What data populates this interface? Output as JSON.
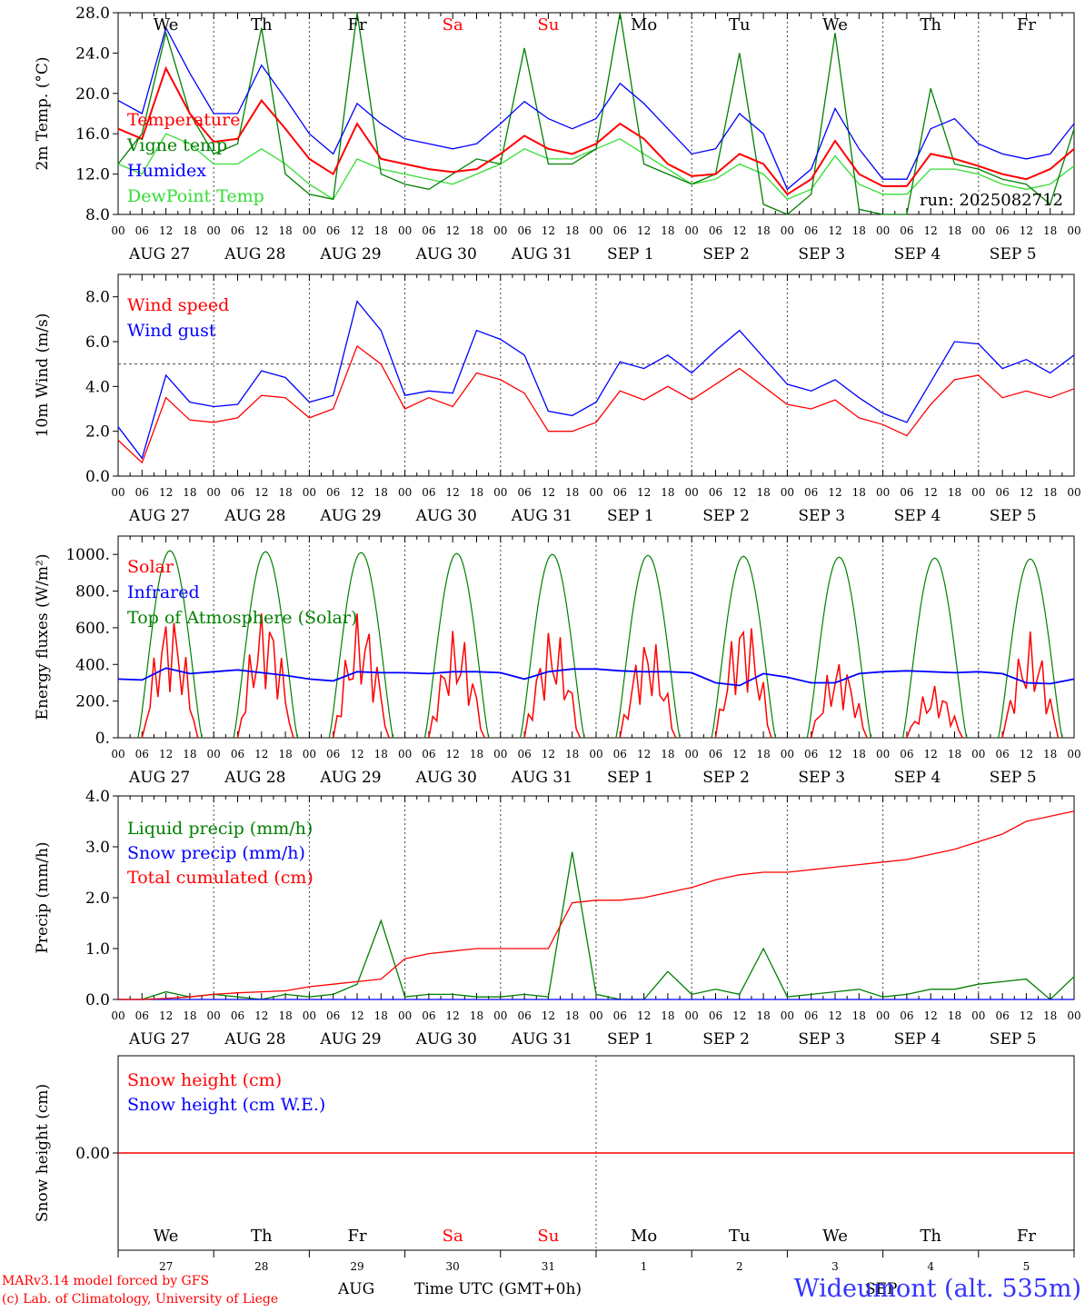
{
  "days": [
    {
      "name": "We",
      "color": "#000000",
      "date": "AUG 27",
      "num": "27"
    },
    {
      "name": "Th",
      "color": "#000000",
      "date": "AUG 28",
      "num": "28"
    },
    {
      "name": "Fr",
      "color": "#000000",
      "date": "AUG 29",
      "num": "29"
    },
    {
      "name": "Sa",
      "color": "#ff0000",
      "date": "AUG 30",
      "num": "30"
    },
    {
      "name": "Su",
      "color": "#ff0000",
      "date": "AUG 31",
      "num": "31"
    },
    {
      "name": "Mo",
      "color": "#000000",
      "date": "SEP  1",
      "num": "1"
    },
    {
      "name": "Tu",
      "color": "#000000",
      "date": "SEP  2",
      "num": "2"
    },
    {
      "name": "We",
      "color": "#000000",
      "date": "SEP  3",
      "num": "3"
    },
    {
      "name": "Th",
      "color": "#000000",
      "date": "SEP  4",
      "num": "4"
    },
    {
      "name": "Fr",
      "color": "#000000",
      "date": "SEP  5",
      "num": "5"
    }
  ],
  "hour_labels": [
    "00",
    "06",
    "12",
    "18"
  ],
  "run_label": "run: 2025082712",
  "footer": {
    "model": "MARv3.14 model forced by GFS",
    "lab": "(c) Lab. of Climatology, University of Liege",
    "month_aug": "AUG",
    "month_sep": "SEP",
    "axis_title": "Time UTC (GMT+0h)",
    "station": "Wideumont (alt. 535m)"
  },
  "colors": {
    "red": "#ff0000",
    "green": "#008000",
    "blue": "#0000ff",
    "lightgreen": "#33dd33"
  },
  "chart_data": [
    {
      "type": "line",
      "ylabel": "2m Temp. (°C)",
      "ylim": [
        8,
        28
      ],
      "yticks": [
        "8.0",
        "12.0",
        "16.0",
        "20.0",
        "24.0",
        "28.0"
      ],
      "ytick_values": [
        8,
        12,
        16,
        20,
        24,
        28
      ],
      "x_hours": [
        0,
        6,
        12,
        18,
        24,
        30,
        36,
        42,
        48,
        54,
        60,
        66,
        72,
        78,
        84,
        90,
        96,
        102,
        108,
        114,
        120,
        126,
        132,
        138,
        144,
        150,
        156,
        162,
        168,
        174,
        180,
        186,
        192,
        198,
        204,
        210,
        216,
        222,
        228,
        234,
        240
      ],
      "series": [
        {
          "name": "Temperature",
          "color": "#ff0000",
          "values": [
            16.5,
            15.5,
            22.5,
            18.0,
            15.2,
            15.5,
            19.3,
            16.5,
            13.5,
            12.0,
            17.0,
            13.5,
            13.0,
            12.5,
            12.2,
            12.5,
            14.0,
            15.8,
            14.5,
            14.0,
            15.0,
            17.0,
            15.5,
            13.0,
            11.8,
            12.0,
            14.0,
            13.0,
            10.0,
            11.5,
            15.3,
            12.0,
            10.8,
            10.8,
            14.0,
            13.5,
            12.8,
            12.0,
            11.5,
            12.5,
            14.5
          ]
        },
        {
          "name": "Vigne temp",
          "color": "#008000",
          "values": [
            13.0,
            16.0,
            26.0,
            18.0,
            14.0,
            15.0,
            26.5,
            12.0,
            10.0,
            9.5,
            28.0,
            12.0,
            11.0,
            10.5,
            12.0,
            13.5,
            13.0,
            24.5,
            13.0,
            13.0,
            14.5,
            28.0,
            13.0,
            12.0,
            11.0,
            12.0,
            24.0,
            9.0,
            7.5,
            10.0,
            26.0,
            8.5,
            7.5,
            7.0,
            20.5,
            13.0,
            12.5,
            11.5,
            11.0,
            9.0,
            16.5
          ]
        },
        {
          "name": "Humidex",
          "color": "#0000ff",
          "values": [
            19.3,
            18.0,
            26.5,
            22.0,
            18.0,
            18.0,
            22.8,
            19.5,
            16.0,
            14.0,
            19.0,
            17.0,
            15.5,
            15.0,
            14.5,
            15.0,
            17.0,
            19.2,
            17.5,
            16.5,
            17.5,
            21.0,
            19.0,
            16.5,
            14.0,
            14.5,
            18.0,
            16.0,
            10.5,
            12.5,
            18.5,
            14.5,
            11.5,
            11.5,
            16.5,
            17.5,
            15.0,
            14.0,
            13.5,
            14.0,
            17.0
          ]
        },
        {
          "name": "DewPoint Temp",
          "color": "#33dd33",
          "values": [
            13.0,
            12.0,
            16.0,
            15.0,
            13.0,
            13.0,
            14.5,
            13.0,
            11.0,
            9.5,
            13.5,
            12.5,
            12.0,
            11.5,
            11.0,
            12.0,
            13.0,
            14.5,
            13.5,
            13.5,
            14.5,
            15.5,
            14.0,
            12.5,
            11.0,
            11.5,
            13.0,
            12.0,
            9.5,
            10.5,
            13.8,
            11.0,
            10.0,
            10.0,
            12.5,
            12.5,
            12.0,
            11.0,
            10.5,
            11.0,
            12.8
          ]
        }
      ]
    },
    {
      "type": "line",
      "ylabel": "10m Wind (m/s)",
      "ylim": [
        0,
        9
      ],
      "yticks": [
        "0.0",
        "2.0",
        "4.0",
        "6.0",
        "8.0"
      ],
      "ytick_values": [
        0,
        2,
        4,
        6,
        8
      ],
      "reference_line": 5,
      "x_hours": [
        0,
        6,
        12,
        18,
        24,
        30,
        36,
        42,
        48,
        54,
        60,
        66,
        72,
        78,
        84,
        90,
        96,
        102,
        108,
        114,
        120,
        126,
        132,
        138,
        144,
        150,
        156,
        162,
        168,
        174,
        180,
        186,
        192,
        198,
        204,
        210,
        216,
        222,
        228,
        234,
        240
      ],
      "series": [
        {
          "name": "Wind speed",
          "color": "#ff0000",
          "values": [
            1.6,
            0.6,
            3.5,
            2.5,
            2.4,
            2.6,
            3.6,
            3.5,
            2.6,
            3.0,
            5.8,
            5.0,
            3.0,
            3.5,
            3.1,
            4.6,
            4.3,
            3.7,
            2.0,
            2.0,
            2.4,
            3.8,
            3.4,
            4.0,
            3.4,
            4.1,
            4.8,
            4.0,
            3.2,
            3.0,
            3.4,
            2.6,
            2.3,
            1.8,
            3.2,
            4.3,
            4.5,
            3.5,
            3.8,
            3.5,
            3.9
          ]
        },
        {
          "name": "Wind gust",
          "color": "#0000ff",
          "values": [
            2.2,
            0.8,
            4.5,
            3.3,
            3.1,
            3.2,
            4.7,
            4.4,
            3.3,
            3.6,
            7.8,
            6.5,
            3.6,
            3.8,
            3.7,
            6.5,
            6.1,
            5.4,
            2.9,
            2.7,
            3.3,
            5.1,
            4.8,
            5.4,
            4.6,
            5.6,
            6.5,
            5.3,
            4.1,
            3.8,
            4.3,
            3.5,
            2.8,
            2.4,
            4.2,
            6.0,
            5.9,
            4.8,
            5.2,
            4.6,
            5.4
          ]
        }
      ]
    },
    {
      "type": "line",
      "ylabel": "Energy fluxes (W/m²)",
      "ylim": [
        0,
        1100
      ],
      "yticks": [
        "0.",
        "200.",
        "400.",
        "600.",
        "800.",
        "1000."
      ],
      "ytick_values": [
        0,
        200,
        400,
        600,
        800,
        1000
      ],
      "x_hours": [
        0,
        6,
        12,
        18,
        24,
        30,
        36,
        42,
        48,
        54,
        60,
        66,
        72,
        78,
        84,
        90,
        96,
        102,
        108,
        114,
        120,
        126,
        132,
        138,
        144,
        150,
        156,
        162,
        168,
        174,
        180,
        186,
        192,
        198,
        204,
        210,
        216,
        222,
        228,
        234,
        240
      ],
      "solar_peak_hours": [
        13,
        37,
        61,
        85,
        109,
        133,
        157,
        181,
        205,
        229
      ],
      "series": [
        {
          "name": "Solar",
          "color": "#ff0000",
          "day_peaks": [
            710,
            730,
            700,
            600,
            610,
            570,
            700,
            440,
            290,
            580
          ]
        },
        {
          "name": "Infrared",
          "color": "#0000ff",
          "values": [
            320,
            315,
            380,
            350,
            360,
            370,
            355,
            340,
            320,
            310,
            360,
            355,
            355,
            350,
            360,
            360,
            355,
            320,
            360,
            375,
            375,
            365,
            360,
            360,
            355,
            300,
            285,
            350,
            330,
            300,
            300,
            350,
            360,
            365,
            360,
            355,
            360,
            350,
            300,
            295,
            320
          ]
        },
        {
          "name": "Top of Atmosphere (Solar)",
          "color": "#008000",
          "day_peaks": [
            1020,
            1015,
            1010,
            1005,
            1000,
            995,
            990,
            985,
            980,
            975
          ]
        }
      ]
    },
    {
      "type": "line",
      "ylabel": "Precip (mm/h)",
      "ylim": [
        0,
        4
      ],
      "yticks": [
        "0.0",
        "1.0",
        "2.0",
        "3.0",
        "4.0"
      ],
      "ytick_values": [
        0,
        1,
        2,
        3,
        4
      ],
      "x_hours": [
        0,
        6,
        12,
        18,
        24,
        30,
        36,
        42,
        48,
        54,
        60,
        66,
        72,
        78,
        84,
        90,
        96,
        102,
        108,
        114,
        120,
        126,
        132,
        138,
        144,
        150,
        156,
        162,
        168,
        174,
        180,
        186,
        192,
        198,
        204,
        210,
        216,
        222,
        228,
        234,
        240
      ],
      "series": [
        {
          "name": "Liquid precip (mm/h)",
          "color": "#008000",
          "values": [
            0.0,
            0.0,
            0.15,
            0.05,
            0.1,
            0.05,
            0.0,
            0.1,
            0.05,
            0.1,
            0.3,
            1.55,
            0.05,
            0.1,
            0.1,
            0.05,
            0.05,
            0.1,
            0.05,
            2.9,
            0.1,
            0.0,
            0.0,
            0.55,
            0.1,
            0.2,
            0.1,
            1.0,
            0.05,
            0.1,
            0.15,
            0.2,
            0.05,
            0.1,
            0.2,
            0.2,
            0.3,
            0.35,
            0.4,
            0.0,
            0.45
          ]
        },
        {
          "name": "Snow precip (mm/h)",
          "color": "#0000ff",
          "values": [
            0,
            0,
            0,
            0,
            0,
            0,
            0,
            0,
            0,
            0,
            0,
            0,
            0,
            0,
            0,
            0,
            0,
            0,
            0,
            0,
            0,
            0,
            0,
            0,
            0,
            0,
            0,
            0,
            0,
            0,
            0,
            0,
            0,
            0,
            0,
            0,
            0,
            0,
            0,
            0,
            0
          ]
        },
        {
          "name": "Total cumulated (cm)",
          "color": "#ff0000",
          "values": [
            0.0,
            0.0,
            0.02,
            0.05,
            0.1,
            0.13,
            0.15,
            0.17,
            0.25,
            0.3,
            0.35,
            0.4,
            0.8,
            0.9,
            0.95,
            1.0,
            1.0,
            1.0,
            1.0,
            1.9,
            1.95,
            1.95,
            2.0,
            2.1,
            2.2,
            2.35,
            2.45,
            2.5,
            2.5,
            2.55,
            2.6,
            2.65,
            2.7,
            2.75,
            2.85,
            2.95,
            3.1,
            3.25,
            3.5,
            3.6,
            3.7
          ]
        }
      ]
    },
    {
      "type": "line",
      "ylabel": "Snow height (cm)",
      "ylim": [
        -1,
        1
      ],
      "yticks": [
        "0.00"
      ],
      "ytick_values": [
        0
      ],
      "series": [
        {
          "name": "Snow height (cm)",
          "color": "#ff0000",
          "values": [
            0,
            0
          ]
        },
        {
          "name": "Snow height (cm W.E.)",
          "color": "#0000ff",
          "values": [
            0,
            0
          ]
        }
      ]
    }
  ]
}
